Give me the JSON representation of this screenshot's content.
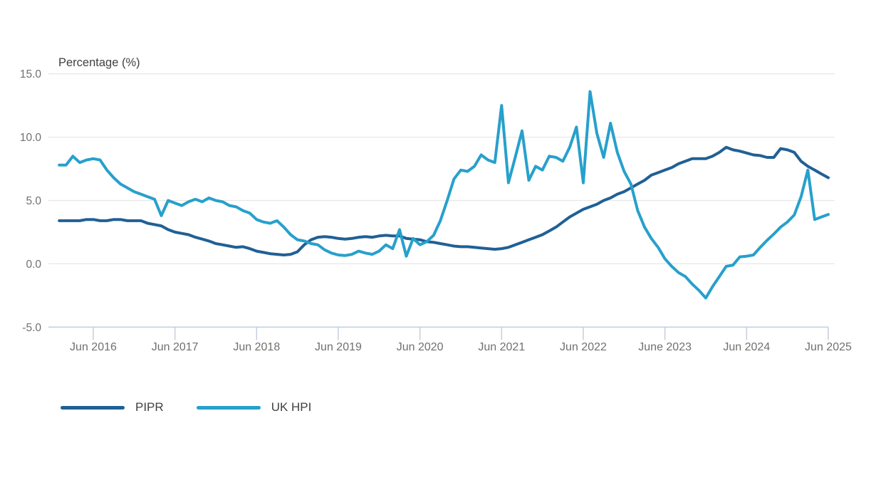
{
  "chart_data": {
    "type": "line",
    "title": "",
    "ylabel": "Percentage (%)",
    "xlabel": "",
    "ylim": [
      -5,
      15
    ],
    "grid": "horizontal",
    "legend_position": "bottom-left",
    "x_start": "2016-01",
    "x_end": "2025-06",
    "x_frequency": "monthly",
    "y_ticks": [
      {
        "label": "15.0",
        "value": 15
      },
      {
        "label": "10.0",
        "value": 10
      },
      {
        "label": "5.0",
        "value": 5
      },
      {
        "label": "0.0",
        "value": 0
      },
      {
        "label": "-5.0",
        "value": -5
      }
    ],
    "x_ticks": [
      {
        "label": "Jun 2016",
        "month_index": 5
      },
      {
        "label": "Jun 2017",
        "month_index": 17
      },
      {
        "label": "Jun 2018",
        "month_index": 29
      },
      {
        "label": "Jun 2019",
        "month_index": 41
      },
      {
        "label": "Jun 2020",
        "month_index": 53
      },
      {
        "label": "Jun 2021",
        "month_index": 65
      },
      {
        "label": "Jun 2022",
        "month_index": 77
      },
      {
        "label": "June 2023",
        "month_index": 89
      },
      {
        "label": "Jun 2024",
        "month_index": 101
      },
      {
        "label": "Jun 2025",
        "month_index": 113
      }
    ],
    "series": [
      {
        "name": "PIPR",
        "color": "#206095",
        "values": [
          3.4,
          3.4,
          3.4,
          3.4,
          3.5,
          3.5,
          3.4,
          3.4,
          3.5,
          3.5,
          3.4,
          3.4,
          3.4,
          3.2,
          3.1,
          3.0,
          2.7,
          2.5,
          2.4,
          2.3,
          2.1,
          1.95,
          1.8,
          1.6,
          1.5,
          1.4,
          1.3,
          1.35,
          1.2,
          1.0,
          0.9,
          0.8,
          0.75,
          0.7,
          0.75,
          0.95,
          1.5,
          1.9,
          2.1,
          2.15,
          2.1,
          2.0,
          1.95,
          2.0,
          2.1,
          2.15,
          2.1,
          2.2,
          2.25,
          2.2,
          2.2,
          2.0,
          1.95,
          1.9,
          1.75,
          1.7,
          1.6,
          1.5,
          1.4,
          1.35,
          1.35,
          1.3,
          1.25,
          1.2,
          1.15,
          1.2,
          1.3,
          1.5,
          1.7,
          1.9,
          2.1,
          2.3,
          2.6,
          2.9,
          3.3,
          3.7,
          4.0,
          4.3,
          4.5,
          4.7,
          5.0,
          5.2,
          5.5,
          5.7,
          6.0,
          6.3,
          6.6,
          7.0,
          7.2,
          7.4,
          7.6,
          7.9,
          8.1,
          8.3,
          8.3,
          8.3,
          8.5,
          8.8,
          9.2,
          9.0,
          8.9,
          8.75,
          8.6,
          8.55,
          8.4,
          8.4,
          9.1,
          9.0,
          8.8,
          8.1,
          7.7,
          7.4,
          7.1,
          6.8
        ]
      },
      {
        "name": "UK HPI",
        "color": "#27A0CC",
        "values": [
          7.8,
          7.8,
          8.5,
          8.0,
          8.2,
          8.3,
          8.2,
          7.4,
          6.8,
          6.3,
          6.0,
          5.7,
          5.5,
          5.3,
          5.1,
          3.8,
          5.0,
          4.8,
          4.6,
          4.9,
          5.1,
          4.9,
          5.2,
          5.0,
          4.9,
          4.6,
          4.5,
          4.2,
          4.0,
          3.5,
          3.3,
          3.2,
          3.4,
          2.9,
          2.3,
          1.9,
          1.8,
          1.6,
          1.5,
          1.1,
          0.85,
          0.7,
          0.65,
          0.75,
          1.0,
          0.85,
          0.75,
          1.0,
          1.5,
          1.2,
          2.7,
          0.6,
          2.0,
          1.5,
          1.75,
          2.25,
          3.4,
          5.0,
          6.7,
          7.4,
          7.3,
          7.7,
          8.6,
          8.2,
          8.0,
          12.5,
          6.4,
          8.4,
          10.5,
          6.6,
          7.7,
          7.4,
          8.5,
          8.4,
          8.1,
          9.2,
          10.8,
          6.4,
          13.6,
          10.3,
          8.4,
          11.1,
          8.8,
          7.3,
          6.3,
          4.2,
          2.9,
          2.0,
          1.3,
          0.4,
          -0.2,
          -0.7,
          -1.0,
          -1.6,
          -2.1,
          -2.7,
          -1.8,
          -1.0,
          -0.2,
          -0.1,
          0.55,
          0.6,
          0.7,
          1.3,
          1.85,
          2.35,
          2.9,
          3.3,
          3.85,
          5.3,
          7.4,
          3.5,
          3.7,
          3.9
        ]
      }
    ],
    "colors": {
      "gridline": "#e7e7e7",
      "axis_line": "#c3cfe0",
      "tick_label": "#707070",
      "title_text": "#414042"
    }
  },
  "legend": {
    "items": [
      {
        "label": "PIPR"
      },
      {
        "label": "UK HPI"
      }
    ]
  }
}
